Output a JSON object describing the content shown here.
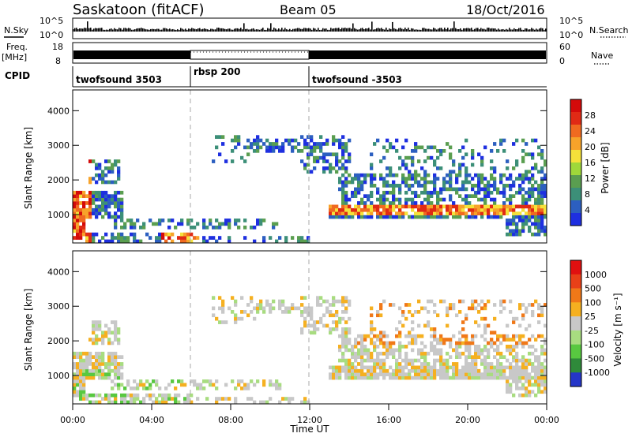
{
  "header": {
    "station": "Saskatoon (fitACF)",
    "beam": "Beam 05",
    "date": "18/Oct/2016"
  },
  "status_panels": {
    "nsky": {
      "label": "N.Sky",
      "right_label": "N.Search",
      "ticks_left": [
        "10^5",
        "10^0"
      ],
      "ticks_right": [
        "10^5",
        "10^0"
      ]
    },
    "freq": {
      "label_line1": "Freq.",
      "label_line2": "[MHz]",
      "ticks_left": [
        "18",
        "8"
      ],
      "ticks_right": [
        "60",
        "0"
      ],
      "right_label": "Nave"
    },
    "cpid": {
      "label": "CPID",
      "segments": [
        {
          "name": "twofsound 3503",
          "start_hour": 0,
          "end_hour": 6
        },
        {
          "name": "rbsp 200",
          "start_hour": 6,
          "end_hour": 12
        },
        {
          "name": "twofsound -3503",
          "start_hour": 12,
          "end_hour": 24
        }
      ]
    }
  },
  "chart_data": [
    {
      "type": "heatmap",
      "name": "power",
      "ylabel": "Slant Range [km]",
      "yticks": [
        "1000",
        "2000",
        "3000",
        "4000"
      ],
      "ylim": [
        180,
        4600
      ],
      "xlim": [
        0,
        24
      ],
      "colorbar": {
        "label": "Power [dB]",
        "ticks": [
          "4",
          "8",
          "12",
          "16",
          "20",
          "24",
          "28"
        ],
        "range": [
          0,
          32
        ],
        "colors": [
          "#1e2fe0",
          "#2c5fc0",
          "#3c8f78",
          "#5a9e50",
          "#9fd83a",
          "#f5e13a",
          "#f7a32a",
          "#f06a20",
          "#e02a15",
          "#d40a0a"
        ]
      }
    },
    {
      "type": "heatmap",
      "name": "velocity",
      "ylabel": "Slant Range [km]",
      "yticks": [
        "1000",
        "2000",
        "3000",
        "4000"
      ],
      "ylim": [
        180,
        4600
      ],
      "xlim": [
        0,
        24
      ],
      "colorbar": {
        "label": "Velocity [m s⁻¹]",
        "ticks": [
          "1000",
          "500",
          "100",
          "25",
          "-25",
          "-100",
          "-500",
          "-1000"
        ],
        "colors": [
          "#2536c8",
          "#2f8a3a",
          "#58c840",
          "#a8dc80",
          "#c8c8c8",
          "#f5b020",
          "#f07818",
          "#e84018",
          "#e01010"
        ]
      }
    }
  ],
  "xaxis": {
    "label": "Time UT",
    "ticks": [
      "00:00",
      "04:00",
      "08:00",
      "12:00",
      "16:00",
      "20:00",
      "00:00"
    ]
  }
}
